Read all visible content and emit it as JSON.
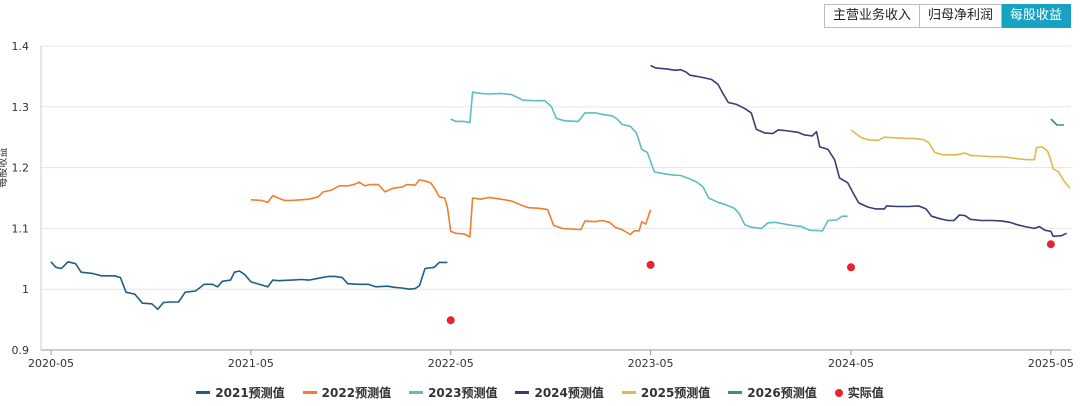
{
  "tabs": [
    {
      "label": "主营业务收入",
      "active": false
    },
    {
      "label": "归母净利润",
      "active": false
    },
    {
      "label": "每股收益",
      "active": true
    }
  ],
  "chart_data": {
    "type": "line",
    "ylabel": "每股收益",
    "ylim": [
      0.9,
      1.4
    ],
    "y_ticks": [
      "0.9",
      "1",
      "1.1",
      "1.2",
      "1.3",
      "1.4"
    ],
    "x_ticks": [
      "2020-05",
      "2021-05",
      "2022-05",
      "2023-05",
      "2024-05",
      "2025-05"
    ],
    "grid": true,
    "legend_position": "bottom",
    "series": [
      {
        "name": "2021预测值",
        "color": "#1e5f86",
        "points": [
          [
            "2020-05-01",
            1.045
          ],
          [
            "2020-05-10",
            1.036
          ],
          [
            "2020-05-20",
            1.034
          ],
          [
            "2020-06-01",
            1.045
          ],
          [
            "2020-06-15",
            1.042
          ],
          [
            "2020-06-25",
            1.028
          ],
          [
            "2020-07-15",
            1.026
          ],
          [
            "2020-08-01",
            1.022
          ],
          [
            "2020-08-25",
            1.022
          ],
          [
            "2020-09-05",
            1.019
          ],
          [
            "2020-09-15",
            0.995
          ],
          [
            "2020-10-01",
            0.992
          ],
          [
            "2020-10-15",
            0.977
          ],
          [
            "2020-11-01",
            0.976
          ],
          [
            "2020-11-12",
            0.967
          ],
          [
            "2020-11-22",
            0.978
          ],
          [
            "2020-12-05",
            0.979
          ],
          [
            "2020-12-20",
            0.979
          ],
          [
            "2021-01-01",
            0.995
          ],
          [
            "2021-01-20",
            0.997
          ],
          [
            "2021-02-05",
            1.008
          ],
          [
            "2021-02-20",
            1.008
          ],
          [
            "2021-03-01",
            1.004
          ],
          [
            "2021-03-10",
            1.013
          ],
          [
            "2021-03-25",
            1.015
          ],
          [
            "2021-04-01",
            1.028
          ],
          [
            "2021-04-10",
            1.03
          ],
          [
            "2021-04-20",
            1.024
          ],
          [
            "2021-05-01",
            1.012
          ],
          [
            "2021-05-20",
            1.007
          ],
          [
            "2021-06-01",
            1.004
          ],
          [
            "2021-06-10",
            1.015
          ],
          [
            "2021-06-20",
            1.014
          ],
          [
            "2021-07-15",
            1.015
          ],
          [
            "2021-08-01",
            1.016
          ],
          [
            "2021-08-15",
            1.015
          ],
          [
            "2021-09-01",
            1.018
          ],
          [
            "2021-09-20",
            1.021
          ],
          [
            "2021-10-01",
            1.021
          ],
          [
            "2021-10-15",
            1.019
          ],
          [
            "2021-10-25",
            1.009
          ],
          [
            "2021-11-15",
            1.008
          ],
          [
            "2021-12-01",
            1.008
          ],
          [
            "2021-12-15",
            1.004
          ],
          [
            "2022-01-05",
            1.005
          ],
          [
            "2022-01-20",
            1.003
          ],
          [
            "2022-02-01",
            1.002
          ],
          [
            "2022-02-15",
            1.0
          ],
          [
            "2022-02-25",
            1.001
          ],
          [
            "2022-03-05",
            1.006
          ],
          [
            "2022-03-15",
            1.034
          ],
          [
            "2022-04-01",
            1.036
          ],
          [
            "2022-04-10",
            1.044
          ],
          [
            "2022-04-25",
            1.044
          ]
        ]
      },
      {
        "name": "2022预测值",
        "color": "#f07f2c",
        "points": [
          [
            "2021-05-01",
            1.147
          ],
          [
            "2021-05-20",
            1.146
          ],
          [
            "2021-06-01",
            1.143
          ],
          [
            "2021-06-10",
            1.154
          ],
          [
            "2021-06-20",
            1.15
          ],
          [
            "2021-07-01",
            1.146
          ],
          [
            "2021-07-15",
            1.146
          ],
          [
            "2021-08-01",
            1.147
          ],
          [
            "2021-08-15",
            1.148
          ],
          [
            "2021-09-01",
            1.152
          ],
          [
            "2021-09-10",
            1.16
          ],
          [
            "2021-09-25",
            1.163
          ],
          [
            "2021-10-10",
            1.17
          ],
          [
            "2021-10-25",
            1.17
          ],
          [
            "2021-11-05",
            1.172
          ],
          [
            "2021-11-15",
            1.176
          ],
          [
            "2021-11-25",
            1.17
          ],
          [
            "2021-12-05",
            1.172
          ],
          [
            "2021-12-20",
            1.172
          ],
          [
            "2022-01-01",
            1.16
          ],
          [
            "2022-01-15",
            1.166
          ],
          [
            "2022-02-01",
            1.168
          ],
          [
            "2022-02-10",
            1.172
          ],
          [
            "2022-02-25",
            1.171
          ],
          [
            "2022-03-05",
            1.18
          ],
          [
            "2022-03-15",
            1.178
          ],
          [
            "2022-03-25",
            1.175
          ],
          [
            "2022-04-01",
            1.167
          ],
          [
            "2022-04-10",
            1.152
          ],
          [
            "2022-04-20",
            1.15
          ],
          [
            "2022-04-25",
            1.135
          ],
          [
            "2022-05-01",
            1.095
          ],
          [
            "2022-05-10",
            1.092
          ],
          [
            "2022-05-25",
            1.091
          ],
          [
            "2022-06-05",
            1.086
          ],
          [
            "2022-06-10",
            1.15
          ],
          [
            "2022-06-25",
            1.148
          ],
          [
            "2022-07-10",
            1.151
          ],
          [
            "2022-08-01",
            1.148
          ],
          [
            "2022-08-20",
            1.145
          ],
          [
            "2022-09-05",
            1.139
          ],
          [
            "2022-09-20",
            1.134
          ],
          [
            "2022-10-10",
            1.133
          ],
          [
            "2022-10-25",
            1.131
          ],
          [
            "2022-11-05",
            1.105
          ],
          [
            "2022-11-20",
            1.1
          ],
          [
            "2022-12-05",
            1.099
          ],
          [
            "2022-12-25",
            1.098
          ],
          [
            "2023-01-01",
            1.112
          ],
          [
            "2023-01-20",
            1.111
          ],
          [
            "2023-02-01",
            1.113
          ],
          [
            "2023-02-15",
            1.11
          ],
          [
            "2023-02-25",
            1.102
          ],
          [
            "2023-03-10",
            1.098
          ],
          [
            "2023-03-25",
            1.09
          ],
          [
            "2023-04-01",
            1.096
          ],
          [
            "2023-04-10",
            1.096
          ],
          [
            "2023-04-15",
            1.111
          ],
          [
            "2023-04-22",
            1.107
          ],
          [
            "2023-05-01",
            1.131
          ]
        ]
      },
      {
        "name": "2023预测值",
        "color": "#5bbfc2",
        "points": [
          [
            "2022-05-01",
            1.28
          ],
          [
            "2022-05-10",
            1.276
          ],
          [
            "2022-05-25",
            1.276
          ],
          [
            "2022-06-05",
            1.274
          ],
          [
            "2022-06-10",
            1.324
          ],
          [
            "2022-06-25",
            1.322
          ],
          [
            "2022-07-10",
            1.321
          ],
          [
            "2022-08-01",
            1.322
          ],
          [
            "2022-08-20",
            1.32
          ],
          [
            "2022-09-10",
            1.311
          ],
          [
            "2022-10-01",
            1.31
          ],
          [
            "2022-10-20",
            1.31
          ],
          [
            "2022-11-01",
            1.3
          ],
          [
            "2022-11-10",
            1.281
          ],
          [
            "2022-11-25",
            1.277
          ],
          [
            "2022-12-20",
            1.276
          ],
          [
            "2023-01-01",
            1.29
          ],
          [
            "2023-01-20",
            1.29
          ],
          [
            "2023-02-05",
            1.287
          ],
          [
            "2023-02-20",
            1.285
          ],
          [
            "2023-03-01",
            1.28
          ],
          [
            "2023-03-10",
            1.271
          ],
          [
            "2023-03-25",
            1.268
          ],
          [
            "2023-04-05",
            1.257
          ],
          [
            "2023-04-15",
            1.23
          ],
          [
            "2023-04-25",
            1.225
          ],
          [
            "2023-05-01",
            1.21
          ],
          [
            "2023-05-08",
            1.193
          ],
          [
            "2023-05-25",
            1.19
          ],
          [
            "2023-06-10",
            1.188
          ],
          [
            "2023-06-25",
            1.187
          ],
          [
            "2023-07-10",
            1.182
          ],
          [
            "2023-07-25",
            1.176
          ],
          [
            "2023-08-05",
            1.168
          ],
          [
            "2023-08-15",
            1.15
          ],
          [
            "2023-09-01",
            1.143
          ],
          [
            "2023-09-15",
            1.139
          ],
          [
            "2023-10-01",
            1.133
          ],
          [
            "2023-10-10",
            1.124
          ],
          [
            "2023-10-20",
            1.106
          ],
          [
            "2023-11-01",
            1.102
          ],
          [
            "2023-11-20",
            1.1
          ],
          [
            "2023-12-01",
            1.109
          ],
          [
            "2023-12-15",
            1.11
          ],
          [
            "2024-01-01",
            1.107
          ],
          [
            "2024-01-15",
            1.105
          ],
          [
            "2024-02-01",
            1.103
          ],
          [
            "2024-02-15",
            1.097
          ],
          [
            "2024-03-10",
            1.096
          ],
          [
            "2024-03-20",
            1.113
          ],
          [
            "2024-04-05",
            1.114
          ],
          [
            "2024-04-15",
            1.12
          ],
          [
            "2024-04-25",
            1.12
          ]
        ]
      },
      {
        "name": "2024预测值",
        "color": "#363f74",
        "points": [
          [
            "2023-05-01",
            1.368
          ],
          [
            "2023-05-10",
            1.364
          ],
          [
            "2023-06-01",
            1.362
          ],
          [
            "2023-06-15",
            1.36
          ],
          [
            "2023-06-25",
            1.361
          ],
          [
            "2023-07-05",
            1.357
          ],
          [
            "2023-07-12",
            1.352
          ],
          [
            "2023-07-25",
            1.35
          ],
          [
            "2023-08-05",
            1.348
          ],
          [
            "2023-08-20",
            1.345
          ],
          [
            "2023-09-01",
            1.337
          ],
          [
            "2023-09-10",
            1.322
          ],
          [
            "2023-09-20",
            1.307
          ],
          [
            "2023-10-05",
            1.304
          ],
          [
            "2023-10-20",
            1.297
          ],
          [
            "2023-11-01",
            1.29
          ],
          [
            "2023-11-10",
            1.263
          ],
          [
            "2023-11-25",
            1.257
          ],
          [
            "2023-12-10",
            1.256
          ],
          [
            "2023-12-20",
            1.262
          ],
          [
            "2024-01-01",
            1.261
          ],
          [
            "2024-01-25",
            1.258
          ],
          [
            "2024-02-05",
            1.254
          ],
          [
            "2024-02-20",
            1.252
          ],
          [
            "2024-02-28",
            1.259
          ],
          [
            "2024-03-05",
            1.234
          ],
          [
            "2024-03-20",
            1.23
          ],
          [
            "2024-04-01",
            1.213
          ],
          [
            "2024-04-10",
            1.183
          ],
          [
            "2024-04-25",
            1.175
          ],
          [
            "2024-05-05",
            1.158
          ],
          [
            "2024-05-15",
            1.142
          ],
          [
            "2024-06-01",
            1.135
          ],
          [
            "2024-06-15",
            1.132
          ],
          [
            "2024-07-01",
            1.132
          ],
          [
            "2024-07-05",
            1.137
          ],
          [
            "2024-07-25",
            1.136
          ],
          [
            "2024-08-15",
            1.136
          ],
          [
            "2024-09-01",
            1.137
          ],
          [
            "2024-09-15",
            1.132
          ],
          [
            "2024-09-25",
            1.12
          ],
          [
            "2024-10-10",
            1.116
          ],
          [
            "2024-10-25",
            1.113
          ],
          [
            "2024-11-05",
            1.113
          ],
          [
            "2024-11-15",
            1.122
          ],
          [
            "2024-11-25",
            1.121
          ],
          [
            "2024-12-05",
            1.115
          ],
          [
            "2024-12-25",
            1.113
          ],
          [
            "2025-01-15",
            1.113
          ],
          [
            "2025-02-01",
            1.112
          ],
          [
            "2025-02-15",
            1.11
          ],
          [
            "2025-03-01",
            1.106
          ],
          [
            "2025-03-15",
            1.103
          ],
          [
            "2025-04-01",
            1.1
          ],
          [
            "2025-04-10",
            1.103
          ],
          [
            "2025-04-20",
            1.097
          ],
          [
            "2025-05-01",
            1.095
          ],
          [
            "2025-05-05",
            1.087
          ],
          [
            "2025-05-20",
            1.088
          ],
          [
            "2025-05-30",
            1.092
          ]
        ]
      },
      {
        "name": "2025预测值",
        "color": "#e0b94e",
        "points": [
          [
            "2024-05-01",
            1.262
          ],
          [
            "2024-05-10",
            1.256
          ],
          [
            "2024-05-20",
            1.249
          ],
          [
            "2024-06-05",
            1.245
          ],
          [
            "2024-06-20",
            1.245
          ],
          [
            "2024-07-01",
            1.25
          ],
          [
            "2024-07-20",
            1.249
          ],
          [
            "2024-08-10",
            1.248
          ],
          [
            "2024-08-25",
            1.248
          ],
          [
            "2024-09-10",
            1.246
          ],
          [
            "2024-09-20",
            1.241
          ],
          [
            "2024-10-01",
            1.225
          ],
          [
            "2024-10-15",
            1.221
          ],
          [
            "2024-10-25",
            1.221
          ],
          [
            "2024-11-10",
            1.221
          ],
          [
            "2024-11-25",
            1.224
          ],
          [
            "2024-12-05",
            1.22
          ],
          [
            "2024-12-25",
            1.219
          ],
          [
            "2025-01-15",
            1.218
          ],
          [
            "2025-02-01",
            1.218
          ],
          [
            "2025-02-20",
            1.216
          ],
          [
            "2025-03-05",
            1.214
          ],
          [
            "2025-03-20",
            1.213
          ],
          [
            "2025-04-01",
            1.213
          ],
          [
            "2025-04-05",
            1.233
          ],
          [
            "2025-04-15",
            1.234
          ],
          [
            "2025-04-25",
            1.227
          ],
          [
            "2025-05-01",
            1.212
          ],
          [
            "2025-05-05",
            1.198
          ],
          [
            "2025-05-15",
            1.193
          ],
          [
            "2025-05-25",
            1.178
          ],
          [
            "2025-06-05",
            1.166
          ]
        ]
      },
      {
        "name": "2026预测值",
        "color": "#3b8f81",
        "points": [
          [
            "2025-05-01",
            1.28
          ],
          [
            "2025-05-12",
            1.27
          ],
          [
            "2025-05-25",
            1.27
          ]
        ]
      },
      {
        "name": "实际值",
        "color": "#e8222e",
        "type": "scatter",
        "points": [
          [
            "2022-05-01",
            0.949
          ],
          [
            "2023-05-01",
            1.04
          ],
          [
            "2024-05-01",
            1.036
          ],
          [
            "2025-05-01",
            1.074
          ]
        ]
      }
    ]
  }
}
